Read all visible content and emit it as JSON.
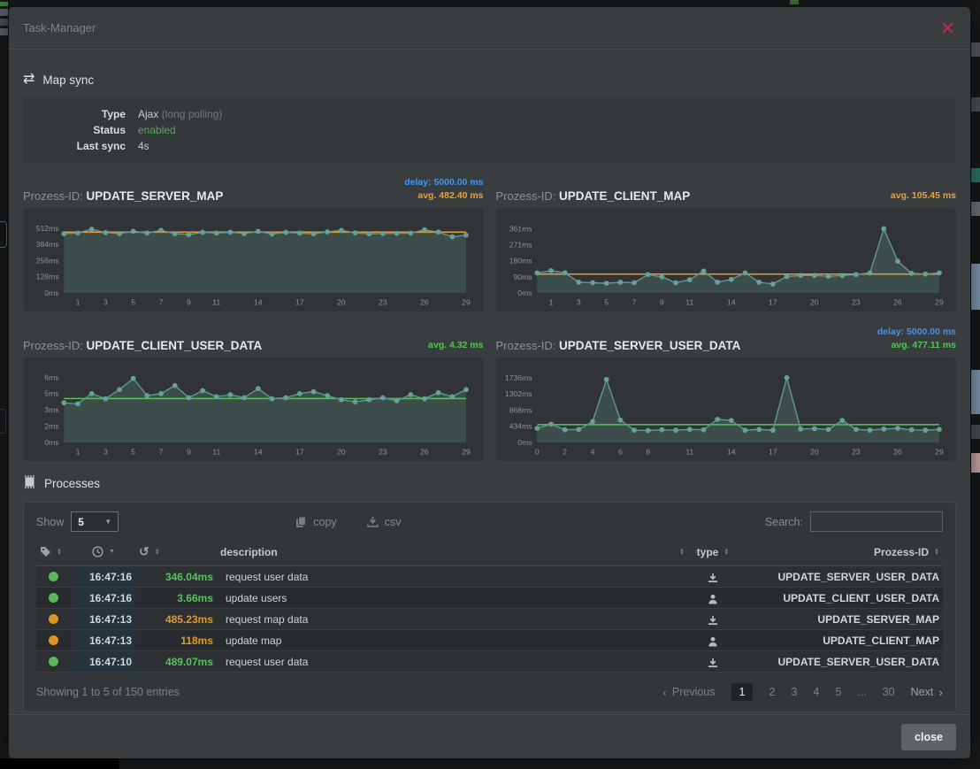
{
  "window": {
    "title": "Task-Manager",
    "close_label": "close"
  },
  "map_sync": {
    "heading": "Map sync",
    "type_label": "Type",
    "type_value": "Ajax",
    "type_note": "(long polling)",
    "status_label": "Status",
    "status_value": "enabled",
    "last_sync_label": "Last sync",
    "last_sync_value": "4s"
  },
  "chart_data": [
    {
      "type": "line",
      "id_label": "Prozess-ID:",
      "name": "UPDATE_SERVER_MAP",
      "delay_text": "delay: 5000.00 ms",
      "avg_text": "avg. 482.40 ms",
      "avg": 482.4,
      "avg_color": "#e89b2a",
      "avg_style": "color:#efa22d",
      "ylim": [
        0,
        565
      ],
      "ymax": 565,
      "unit": "ms",
      "y_ticks": [
        {
          "v": 0,
          "t": "0ms"
        },
        {
          "v": 128,
          "t": "128ms"
        },
        {
          "v": 256,
          "t": "256ms"
        },
        {
          "v": 384,
          "t": "384ms"
        },
        {
          "v": 512,
          "t": "512ms"
        }
      ],
      "x_ticks": [
        1,
        3,
        5,
        7,
        9,
        11,
        14,
        17,
        20,
        23,
        26,
        29
      ],
      "values": [
        470,
        476,
        506,
        479,
        471,
        489,
        475,
        497,
        471,
        463,
        481,
        475,
        482,
        471,
        489,
        467,
        481,
        475,
        469,
        485,
        496,
        477,
        469,
        471,
        473,
        475,
        501,
        483,
        445,
        459
      ]
    },
    {
      "type": "line",
      "id_label": "Prozess-ID:",
      "name": "UPDATE_CLIENT_MAP",
      "avg_text": "avg. 105.45 ms",
      "avg": 105.45,
      "avg_color": "#e89b2a",
      "avg_style": "color:#efa22d",
      "ylim": [
        0,
        400
      ],
      "ymax": 400,
      "unit": "ms",
      "y_ticks": [
        {
          "v": 0,
          "t": "0ms"
        },
        {
          "v": 90,
          "t": "90ms"
        },
        {
          "v": 180,
          "t": "180ms"
        },
        {
          "v": 271,
          "t": "271ms"
        },
        {
          "v": 361,
          "t": "361ms"
        }
      ],
      "x_ticks": [
        1,
        3,
        5,
        7,
        9,
        11,
        14,
        17,
        20,
        23,
        26,
        29
      ],
      "values": [
        112,
        125,
        113,
        60,
        57,
        54,
        60,
        57,
        103,
        90,
        57,
        74,
        123,
        60,
        76,
        112,
        60,
        50,
        92,
        98,
        98,
        93,
        98,
        103,
        112,
        361,
        178,
        110,
        106,
        112
      ]
    },
    {
      "type": "line",
      "id_label": "Prozess-ID:",
      "name": "UPDATE_CLIENT_USER_DATA",
      "avg_text": "avg. 4.32 ms",
      "avg": 4.32,
      "avg_color": "#54c454",
      "avg_style": "color:#52c752",
      "ylim": [
        0,
        7
      ],
      "ymax": 7,
      "unit": "ms",
      "y_ticks": [
        {
          "v": 0,
          "t": "0ms"
        },
        {
          "v": 1.6,
          "t": "2ms"
        },
        {
          "v": 3.2,
          "t": "3ms"
        },
        {
          "v": 4.8,
          "t": "5ms"
        },
        {
          "v": 6.4,
          "t": "6ms"
        }
      ],
      "x_ticks": [
        1,
        3,
        5,
        7,
        9,
        11,
        14,
        17,
        20,
        23,
        26,
        29
      ],
      "values": [
        3.9,
        3.8,
        4.8,
        4.3,
        5.2,
        6.3,
        4.6,
        4.8,
        5.6,
        4.4,
        5.1,
        4.5,
        4.7,
        4.4,
        5.3,
        4.3,
        4.4,
        4.8,
        5.0,
        4.6,
        4.2,
        4.0,
        4.2,
        4.4,
        4.1,
        4.7,
        4.3,
        4.9,
        4.5,
        5.2
      ]
    },
    {
      "type": "line",
      "id_label": "Prozess-ID:",
      "name": "UPDATE_SERVER_USER_DATA",
      "delay_text": "delay: 5000.00 ms",
      "avg_text": "avg. 477.11 ms",
      "avg": 477.11,
      "avg_color": "#54c454",
      "avg_style": "color:#52c752",
      "ylim": [
        0,
        1910
      ],
      "ymax": 1910,
      "unit": "ms",
      "y_ticks": [
        {
          "v": 0,
          "t": "0ms"
        },
        {
          "v": 434,
          "t": "434ms"
        },
        {
          "v": 868,
          "t": "868ms"
        },
        {
          "v": 1302,
          "t": "1302ms"
        },
        {
          "v": 1736,
          "t": "1736ms"
        }
      ],
      "x_ticks": [
        0,
        2,
        4,
        6,
        8,
        11,
        14,
        17,
        20,
        23,
        26,
        29
      ],
      "values": [
        380,
        490,
        340,
        350,
        560,
        1690,
        600,
        330,
        320,
        340,
        330,
        350,
        340,
        620,
        590,
        330,
        350,
        330,
        1736,
        360,
        370,
        350,
        590,
        350,
        330,
        360,
        380,
        340,
        330,
        350
      ]
    }
  ],
  "processes": {
    "heading": "Processes",
    "show_label": "Show",
    "page_size": "5",
    "copy_label": "copy",
    "csv_label": "csv",
    "search_label": "Search:",
    "table": {
      "headers": {
        "description": "description",
        "type": "type",
        "process_id": "Prozess-ID"
      },
      "rows": [
        {
          "status": "ok",
          "time": "16:47:16",
          "duration": "346.04ms",
          "description": "request user data",
          "type": "server",
          "process_id": "UPDATE_SERVER_USER_DATA"
        },
        {
          "status": "ok",
          "time": "16:47:16",
          "duration": "3.66ms",
          "description": "update users",
          "type": "client",
          "process_id": "UPDATE_CLIENT_USER_DATA"
        },
        {
          "status": "warn",
          "time": "16:47:13",
          "duration": "485.23ms",
          "description": "request map data",
          "type": "server",
          "process_id": "UPDATE_SERVER_MAP"
        },
        {
          "status": "warn",
          "time": "16:47:13",
          "duration": "118ms",
          "description": "update map",
          "type": "client",
          "process_id": "UPDATE_CLIENT_MAP"
        },
        {
          "status": "ok",
          "time": "16:47:10",
          "duration": "489.07ms",
          "description": "request user data",
          "type": "server",
          "process_id": "UPDATE_SERVER_USER_DATA"
        }
      ]
    },
    "footer": {
      "summary": "Showing 1 to 5 of 150 entries",
      "previous": "Previous",
      "next": "Next",
      "pages": [
        "1",
        "2",
        "3",
        "4",
        "5",
        "...",
        "30"
      ],
      "active_page": "1"
    }
  },
  "colors": {
    "status_ok": "#5cb85c",
    "status_warn": "#e09626",
    "delay_blue": "#3e96f2",
    "avg_orange": "#efa22d",
    "avg_green": "#54c454",
    "enabled_green": "#4fae4f",
    "close_x_red": "#a83232"
  }
}
